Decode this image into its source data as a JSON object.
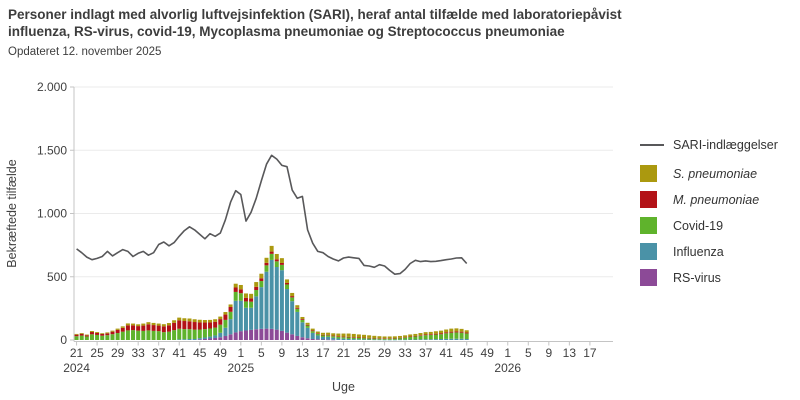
{
  "header": {
    "title_line1": "Personer indlagt med alvorlig luftvejsinfektion (SARI), heraf antal tilfælde med laboratoriepåvist",
    "title_line2": "influenza, RS-virus, covid-19, Mycoplasma pneumoniae og Streptococcus pneumoniae",
    "subtitle": "Opdateret 12. november 2025"
  },
  "chart_data": {
    "type": "line+stacked-bar",
    "title": "Personer indlagt med alvorlig luftvejsinfektion (SARI), heraf antal tilfælde med laboratoriepåvist influenza, RS-virus, covid-19, Mycoplasma pneumoniae og Streptococcus pneumoniae",
    "xlabel": "Uge",
    "ylabel": "Bekræftede tilfælde",
    "ylim": [
      0,
      2000
    ],
    "ytick_values": [
      0,
      500,
      1000,
      1500,
      2000
    ],
    "ytick_labels": [
      "0",
      "500",
      "1.000",
      "1.500",
      "2.000"
    ],
    "grid": "horizontal-only",
    "x_axis": {
      "start": {
        "year": 2024,
        "week": 21
      },
      "end_axis": {
        "year": 2026,
        "week": 21
      },
      "data_end": {
        "year": 2025,
        "week": 45
      },
      "tick_week_gap": 4,
      "xtick_labels": [
        "21",
        "25",
        "29",
        "33",
        "37",
        "41",
        "45",
        "49",
        "1",
        "5",
        "9",
        "13",
        "17",
        "21",
        "25",
        "29",
        "33",
        "37",
        "41",
        "45",
        "49",
        "1",
        "5",
        "9",
        "13",
        "17"
      ],
      "year_labels": [
        {
          "label": "2024",
          "week_offset": 0
        },
        {
          "label": "2025",
          "week_offset": 32
        },
        {
          "label": "2026",
          "week_offset": 84
        }
      ]
    },
    "line_series": {
      "name": "SARI-indlæggelser",
      "color": "#58585a",
      "values": [
        720,
        690,
        655,
        635,
        645,
        660,
        700,
        665,
        690,
        715,
        700,
        660,
        685,
        700,
        670,
        690,
        755,
        775,
        745,
        770,
        820,
        865,
        895,
        870,
        835,
        800,
        840,
        820,
        845,
        950,
        1090,
        1180,
        1150,
        940,
        1010,
        1120,
        1260,
        1390,
        1460,
        1430,
        1380,
        1370,
        1185,
        1120,
        1135,
        870,
        765,
        700,
        690,
        660,
        640,
        625,
        648,
        655,
        650,
        645,
        590,
        585,
        575,
        595,
        585,
        550,
        520,
        525,
        558,
        605,
        630,
        620,
        625,
        620,
        622,
        628,
        635,
        640,
        648,
        650,
        605
      ]
    },
    "stack_series_bottom_to_top": [
      {
        "name": "RS-virus",
        "color": "#8c4a97",
        "italic": false,
        "values": [
          0,
          0,
          0,
          0,
          0,
          0,
          0,
          0,
          0,
          0,
          0,
          0,
          0,
          0,
          0,
          0,
          0,
          0,
          0,
          0,
          0,
          0,
          0,
          0,
          5,
          8,
          12,
          16,
          22,
          32,
          45,
          60,
          70,
          75,
          80,
          85,
          88,
          90,
          88,
          82,
          72,
          58,
          45,
          32,
          22,
          14,
          8,
          6,
          4,
          3,
          2,
          0,
          0,
          0,
          0,
          0,
          0,
          0,
          0,
          0,
          0,
          0,
          0,
          0,
          0,
          0,
          0,
          0,
          0,
          0,
          0,
          0,
          0,
          0,
          0,
          0,
          0
        ]
      },
      {
        "name": "Influenza",
        "color": "#4a92a7",
        "italic": false,
        "values": [
          0,
          0,
          0,
          0,
          0,
          0,
          0,
          0,
          0,
          0,
          0,
          0,
          0,
          0,
          0,
          0,
          0,
          0,
          0,
          0,
          5,
          6,
          8,
          8,
          10,
          12,
          15,
          20,
          35,
          65,
          120,
          250,
          240,
          180,
          175,
          260,
          330,
          450,
          545,
          495,
          480,
          345,
          262,
          190,
          118,
          82,
          48,
          30,
          20,
          22,
          16,
          12,
          10,
          8,
          7,
          6,
          5,
          4,
          3,
          3,
          2,
          2,
          2,
          3,
          3,
          4,
          4,
          5,
          6,
          6,
          7,
          8,
          9,
          10,
          10,
          10,
          8
        ]
      },
      {
        "name": "Covid-19",
        "color": "#5fb32c",
        "italic": false,
        "values": [
          30,
          35,
          28,
          45,
          40,
          34,
          38,
          46,
          55,
          66,
          76,
          78,
          74,
          72,
          76,
          72,
          70,
          62,
          66,
          78,
          84,
          80,
          78,
          74,
          68,
          66,
          64,
          62,
          64,
          62,
          58,
          70,
          60,
          50,
          48,
          50,
          48,
          50,
          48,
          45,
          42,
          36,
          30,
          25,
          20,
          18,
          14,
          12,
          12,
          12,
          12,
          12,
          12,
          12,
          11,
          10,
          10,
          9,
          9,
          8,
          8,
          9,
          10,
          12,
          16,
          20,
          24,
          28,
          32,
          34,
          36,
          38,
          44,
          48,
          50,
          48,
          44
        ]
      },
      {
        "name": "M. pneumoniae",
        "color": "#b31217",
        "italic": true,
        "values": [
          12,
          14,
          10,
          18,
          16,
          14,
          15,
          20,
          25,
          30,
          40,
          38,
          36,
          42,
          48,
          46,
          44,
          46,
          50,
          58,
          66,
          64,
          62,
          60,
          56,
          52,
          48,
          46,
          44,
          42,
          38,
          35,
          30,
          28,
          26,
          25,
          22,
          20,
          18,
          16,
          15,
          12,
          10,
          8,
          6,
          6,
          6,
          5,
          5,
          5,
          5,
          5,
          5,
          5,
          5,
          4,
          4,
          4,
          3,
          3,
          3,
          3,
          3,
          3,
          3,
          4,
          4,
          5,
          6,
          6,
          7,
          8,
          8,
          8,
          8,
          8,
          7
        ]
      },
      {
        "name": "S. pneumoniae",
        "color": "#ab990f",
        "italic": true,
        "values": [
          6,
          6,
          5,
          8,
          7,
          6,
          7,
          8,
          10,
          12,
          15,
          14,
          14,
          16,
          17,
          17,
          16,
          17,
          18,
          20,
          22,
          22,
          22,
          22,
          21,
          20,
          20,
          20,
          20,
          20,
          20,
          30,
          35,
          35,
          36,
          38,
          36,
          40,
          45,
          42,
          38,
          28,
          25,
          20,
          16,
          16,
          14,
          14,
          16,
          16,
          18,
          22,
          24,
          26,
          25,
          24,
          22,
          20,
          18,
          16,
          15,
          14,
          14,
          14,
          15,
          16,
          16,
          17,
          18,
          18,
          19,
          20,
          22,
          24,
          24,
          22,
          18
        ]
      }
    ],
    "legend_top_to_bottom": [
      "SARI-indlæggelser",
      "S. pneumoniae",
      "M. pneumoniae",
      "Covid-19",
      "Influenza",
      "RS-virus"
    ],
    "legend_position": "right",
    "colors": {
      "line": "#58585a",
      "axis": "#c4c4c4",
      "gridline": "#ebebeb",
      "text": "#404040"
    }
  }
}
